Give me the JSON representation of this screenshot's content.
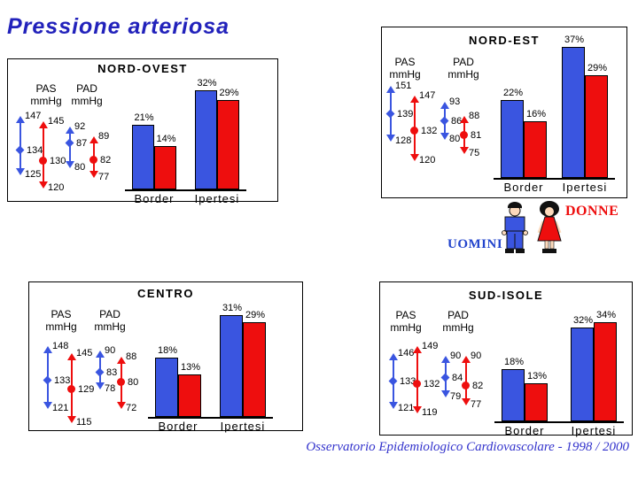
{
  "slide": {
    "title": "Pressione arteriosa",
    "caption": "Osservatorio Epidemiologico Cardiovascolare - 1998 / 2000"
  },
  "legend": {
    "men_label": "UOMINI",
    "women_label": "DONNE"
  },
  "labels": {
    "pas": "PAS",
    "pad": "PAD",
    "unit": "mmHg"
  },
  "colors": {
    "men": "#3A55E0",
    "women": "#EE0E0E",
    "title": "#2222BB",
    "caption": "#3333CC",
    "men_label": "#2244CC",
    "women_label": "#EE0E0E"
  },
  "chart_data": [
    {
      "type": "bar",
      "region": "NORD-OVEST",
      "pas_mmHg": {
        "uomini": {
          "max": 147,
          "mean": 134,
          "min": 125
        },
        "donne": {
          "max": 145,
          "mean": 130,
          "min": 120
        }
      },
      "pad_mmHg": {
        "uomini": {
          "max": 92,
          "mean": 87,
          "min": 80
        },
        "donne": {
          "max": 89,
          "mean": 82,
          "min": 77
        }
      },
      "bars": {
        "categories": [
          "Border",
          "Ipertesi"
        ],
        "series": [
          {
            "name": "UOMINI",
            "values": [
              21,
              32
            ]
          },
          {
            "name": "DONNE",
            "values": [
              14,
              29
            ]
          }
        ],
        "unit": "%"
      }
    },
    {
      "type": "bar",
      "region": "NORD-EST",
      "pas_mmHg": {
        "uomini": {
          "max": 151,
          "mean": 139,
          "min": 128
        },
        "donne": {
          "max": 147,
          "mean": 132,
          "min": 120
        }
      },
      "pad_mmHg": {
        "uomini": {
          "max": 93,
          "mean": 86,
          "min": 80
        },
        "donne": {
          "max": 88,
          "mean": 81,
          "min": 75
        }
      },
      "bars": {
        "categories": [
          "Border",
          "Ipertesi"
        ],
        "series": [
          {
            "name": "UOMINI",
            "values": [
              22,
              37
            ]
          },
          {
            "name": "DONNE",
            "values": [
              16,
              29
            ]
          }
        ],
        "unit": "%"
      }
    },
    {
      "type": "bar",
      "region": "CENTRO",
      "pas_mmHg": {
        "uomini": {
          "max": 148,
          "mean": 133,
          "min": 121
        },
        "donne": {
          "max": 145,
          "mean": 129,
          "min": 115
        }
      },
      "pad_mmHg": {
        "uomini": {
          "max": 90,
          "mean": 83,
          "min": 78
        },
        "donne": {
          "max": 88,
          "mean": 80,
          "min": 72
        }
      },
      "bars": {
        "categories": [
          "Border",
          "Ipertesi"
        ],
        "series": [
          {
            "name": "UOMINI",
            "values": [
              18,
              31
            ]
          },
          {
            "name": "DONNE",
            "values": [
              13,
              29
            ]
          }
        ],
        "unit": "%"
      }
    },
    {
      "type": "bar",
      "region": "SUD-ISOLE",
      "pas_mmHg": {
        "uomini": {
          "max": 146,
          "mean": 133,
          "min": 121
        },
        "donne": {
          "max": 149,
          "mean": 132,
          "min": 119
        }
      },
      "pad_mmHg": {
        "uomini": {
          "max": 90,
          "mean": 84,
          "min": 79
        },
        "donne": {
          "max": 90,
          "mean": 82,
          "min": 77
        }
      },
      "bars": {
        "categories": [
          "Border",
          "Ipertesi"
        ],
        "series": [
          {
            "name": "UOMINI",
            "values": [
              18,
              32
            ]
          },
          {
            "name": "DONNE",
            "values": [
              13,
              34
            ]
          }
        ],
        "unit": "%"
      }
    }
  ]
}
